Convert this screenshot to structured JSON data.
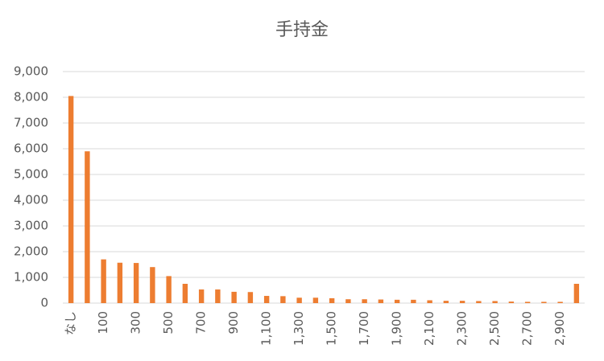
{
  "chart_data": {
    "type": "bar",
    "title": "手持金",
    "categories": [
      "なし",
      null,
      "100",
      null,
      "300",
      null,
      "500",
      null,
      "700",
      null,
      "900",
      null,
      "1,100",
      null,
      "1,300",
      null,
      "1,500",
      null,
      "1,700",
      null,
      "1,900",
      null,
      "2,100",
      null,
      "2,300",
      null,
      "2,500",
      null,
      "2,700",
      null,
      "2,900",
      null
    ],
    "values": [
      8050,
      5900,
      1700,
      1570,
      1560,
      1400,
      1050,
      750,
      530,
      530,
      440,
      430,
      280,
      270,
      210,
      210,
      190,
      150,
      150,
      140,
      130,
      130,
      110,
      90,
      90,
      80,
      80,
      60,
      50,
      50,
      50,
      750
    ],
    "color": "#ed7d31",
    "ylim": [
      0,
      9000
    ],
    "yticks": [
      0,
      {
        "value": 1000,
        "label": "1,000"
      },
      {
        "value": 2000,
        "label": "2,000"
      },
      {
        "value": 3000,
        "label": "3,000"
      },
      {
        "value": 4000,
        "label": "4,000"
      },
      {
        "value": 5000,
        "label": "5,000"
      },
      {
        "value": 6000,
        "label": "6,000"
      },
      {
        "value": 7000,
        "label": "7,000"
      },
      {
        "value": 8000,
        "label": "8,000"
      },
      {
        "value": 9000,
        "label": "9,000"
      }
    ],
    "grid": true
  }
}
